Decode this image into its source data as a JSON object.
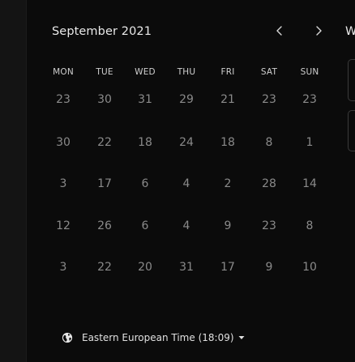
{
  "calendar": {
    "month_title": "September 2021",
    "weekdays": [
      "MON",
      "TUE",
      "WED",
      "THU",
      "FRI",
      "SAT",
      "SUN"
    ],
    "weeks": [
      [
        "23",
        "30",
        "31",
        "29",
        "21",
        "23",
        "23"
      ],
      [
        "30",
        "22",
        "18",
        "24",
        "18",
        "8",
        "1"
      ],
      [
        "3",
        "17",
        "6",
        "4",
        "2",
        "28",
        "14"
      ],
      [
        "12",
        "26",
        "6",
        "4",
        "9",
        "23",
        "8"
      ],
      [
        "3",
        "22",
        "20",
        "31",
        "17",
        "9",
        "10"
      ]
    ],
    "prev_icon": "chevron-left-icon",
    "next_icon": "chevron-right-icon"
  },
  "side": {
    "cut_heading": "W"
  },
  "timezone": {
    "label": "Eastern European Time (18:09)",
    "icon": "globe-icon",
    "caret_icon": "caret-down-icon"
  }
}
